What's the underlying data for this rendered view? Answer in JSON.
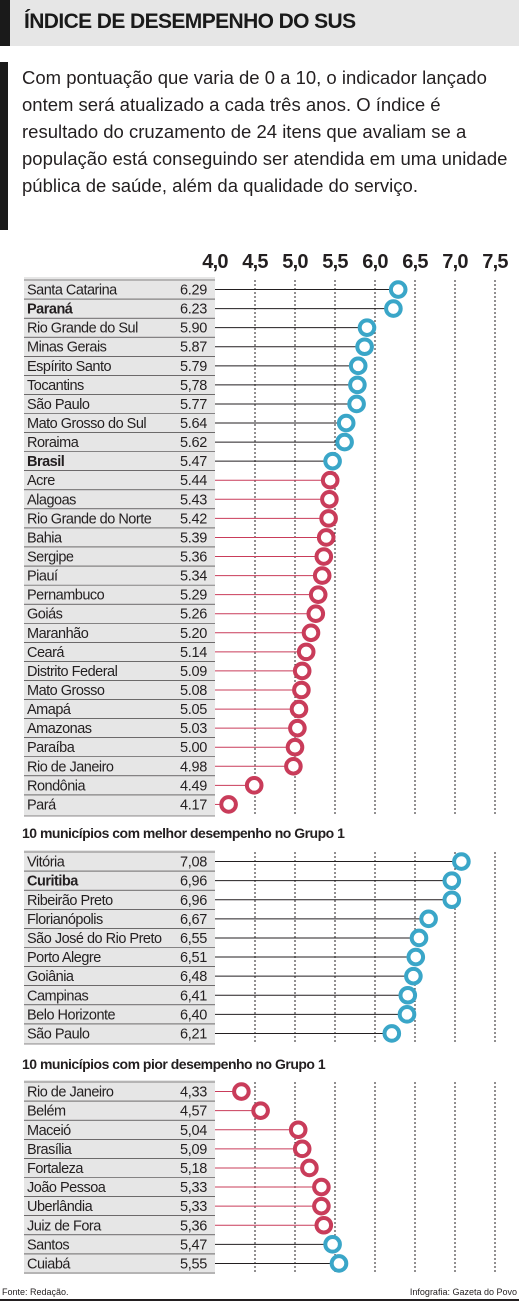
{
  "header": {
    "title": "ÍNDICE DE DESEMPENHO DO SUS",
    "intro": "Com pontuação que varia de 0 a 10, o indicador lançado ontem será atualizado a cada três anos. O índice é resultado do cruzamento de 24 itens que avaliam se a população está conseguindo ser atendida em uma unidade pública de saúde, além da qualidade do serviço."
  },
  "footer": {
    "source": "Fonte: Redação.",
    "credit": "Infografia: Gazeta do Povo"
  },
  "colors": {
    "above": "#3aa6c8",
    "below": "#c93c5a",
    "label_band": "#e6e6e6",
    "line_above": "#231f20",
    "line_below": "#c93c5a"
  },
  "chart_data": [
    {
      "type": "dot",
      "title": "",
      "x_ticks": [
        "4,0",
        "4,5",
        "5,0",
        "5,5",
        "6,0",
        "6,5",
        "7,0",
        "7,5"
      ],
      "xlim": [
        4.0,
        7.5
      ],
      "reference_value": 5.47,
      "rows": [
        {
          "name": "Santa Catarina",
          "label": "6.29",
          "value": 6.29
        },
        {
          "name": "Paraná",
          "label": "6.23",
          "value": 6.23,
          "bold": true
        },
        {
          "name": "Rio Grande do Sul",
          "label": "5.90",
          "value": 5.9
        },
        {
          "name": "Minas Gerais",
          "label": "5.87",
          "value": 5.87
        },
        {
          "name": "Espírito Santo",
          "label": "5.79",
          "value": 5.79
        },
        {
          "name": "Tocantins",
          "label": "5,78",
          "value": 5.78
        },
        {
          "name": "São Paulo",
          "label": "5.77",
          "value": 5.77
        },
        {
          "name": "Mato Grosso do Sul",
          "label": "5.64",
          "value": 5.64
        },
        {
          "name": "Roraima",
          "label": "5.62",
          "value": 5.62
        },
        {
          "name": "Brasil",
          "label": "5.47",
          "value": 5.47,
          "bold": true
        },
        {
          "name": "Acre",
          "label": "5.44",
          "value": 5.44
        },
        {
          "name": "Alagoas",
          "label": "5.43",
          "value": 5.43
        },
        {
          "name": "Rio Grande do Norte",
          "label": "5.42",
          "value": 5.42
        },
        {
          "name": "Bahia",
          "label": "5.39",
          "value": 5.39
        },
        {
          "name": "Sergipe",
          "label": "5.36",
          "value": 5.36
        },
        {
          "name": "Piauí",
          "label": "5.34",
          "value": 5.34
        },
        {
          "name": "Pernambuco",
          "label": "5.29",
          "value": 5.29
        },
        {
          "name": "Goiás",
          "label": "5.26",
          "value": 5.26
        },
        {
          "name": "Maranhão",
          "label": "5.20",
          "value": 5.2
        },
        {
          "name": "Ceará",
          "label": "5.14",
          "value": 5.14
        },
        {
          "name": "Distrito Federal",
          "label": "5.09",
          "value": 5.09
        },
        {
          "name": "Mato Grosso",
          "label": "5.08",
          "value": 5.08
        },
        {
          "name": "Amapá",
          "label": "5.05",
          "value": 5.05
        },
        {
          "name": "Amazonas",
          "label": "5.03",
          "value": 5.03
        },
        {
          "name": "Paraíba",
          "label": "5.00",
          "value": 5.0
        },
        {
          "name": "Rio de Janeiro",
          "label": "4.98",
          "value": 4.98
        },
        {
          "name": "Rondônia",
          "label": "4.49",
          "value": 4.49
        },
        {
          "name": "Pará",
          "label": "4.17",
          "value": 4.17
        }
      ]
    },
    {
      "type": "dot",
      "title": "10 municípios com melhor desempenho no Grupo 1",
      "xlim": [
        4.0,
        7.5
      ],
      "reference_value": 5.47,
      "rows": [
        {
          "name": "Vitória",
          "label": "7,08",
          "value": 7.08
        },
        {
          "name": "Curitiba",
          "label": "6,96",
          "value": 6.96,
          "bold": true
        },
        {
          "name": "Ribeirão Preto",
          "label": "6,96",
          "value": 6.96
        },
        {
          "name": "Florianópolis",
          "label": "6,67",
          "value": 6.67
        },
        {
          "name": "São José do Rio Preto",
          "label": "6,55",
          "value": 6.55
        },
        {
          "name": "Porto Alegre",
          "label": "6,51",
          "value": 6.51
        },
        {
          "name": "Goiânia",
          "label": "6,48",
          "value": 6.48
        },
        {
          "name": "Campinas",
          "label": "6,41",
          "value": 6.41
        },
        {
          "name": "Belo Horizonte",
          "label": "6,40",
          "value": 6.4
        },
        {
          "name": "São Paulo",
          "label": "6,21",
          "value": 6.21
        }
      ]
    },
    {
      "type": "dot",
      "title": "10 municípios com pior desempenho no Grupo 1",
      "xlim": [
        4.0,
        7.5
      ],
      "reference_value": 5.47,
      "rows": [
        {
          "name": "Rio de Janeiro",
          "label": "4,33",
          "value": 4.33
        },
        {
          "name": "Belém",
          "label": "4,57",
          "value": 4.57
        },
        {
          "name": "Maceió",
          "label": "5,04",
          "value": 5.04
        },
        {
          "name": "Brasília",
          "label": "5,09",
          "value": 5.09
        },
        {
          "name": "Fortaleza",
          "label": "5,18",
          "value": 5.18
        },
        {
          "name": "João Pessoa",
          "label": "5,33",
          "value": 5.33
        },
        {
          "name": "Uberlândia",
          "label": "5,33",
          "value": 5.33
        },
        {
          "name": "Juiz de Fora",
          "label": "5,36",
          "value": 5.36
        },
        {
          "name": "Santos",
          "label": "5,47",
          "value": 5.47
        },
        {
          "name": "Cuiabá",
          "label": "5,55",
          "value": 5.55
        }
      ]
    }
  ]
}
